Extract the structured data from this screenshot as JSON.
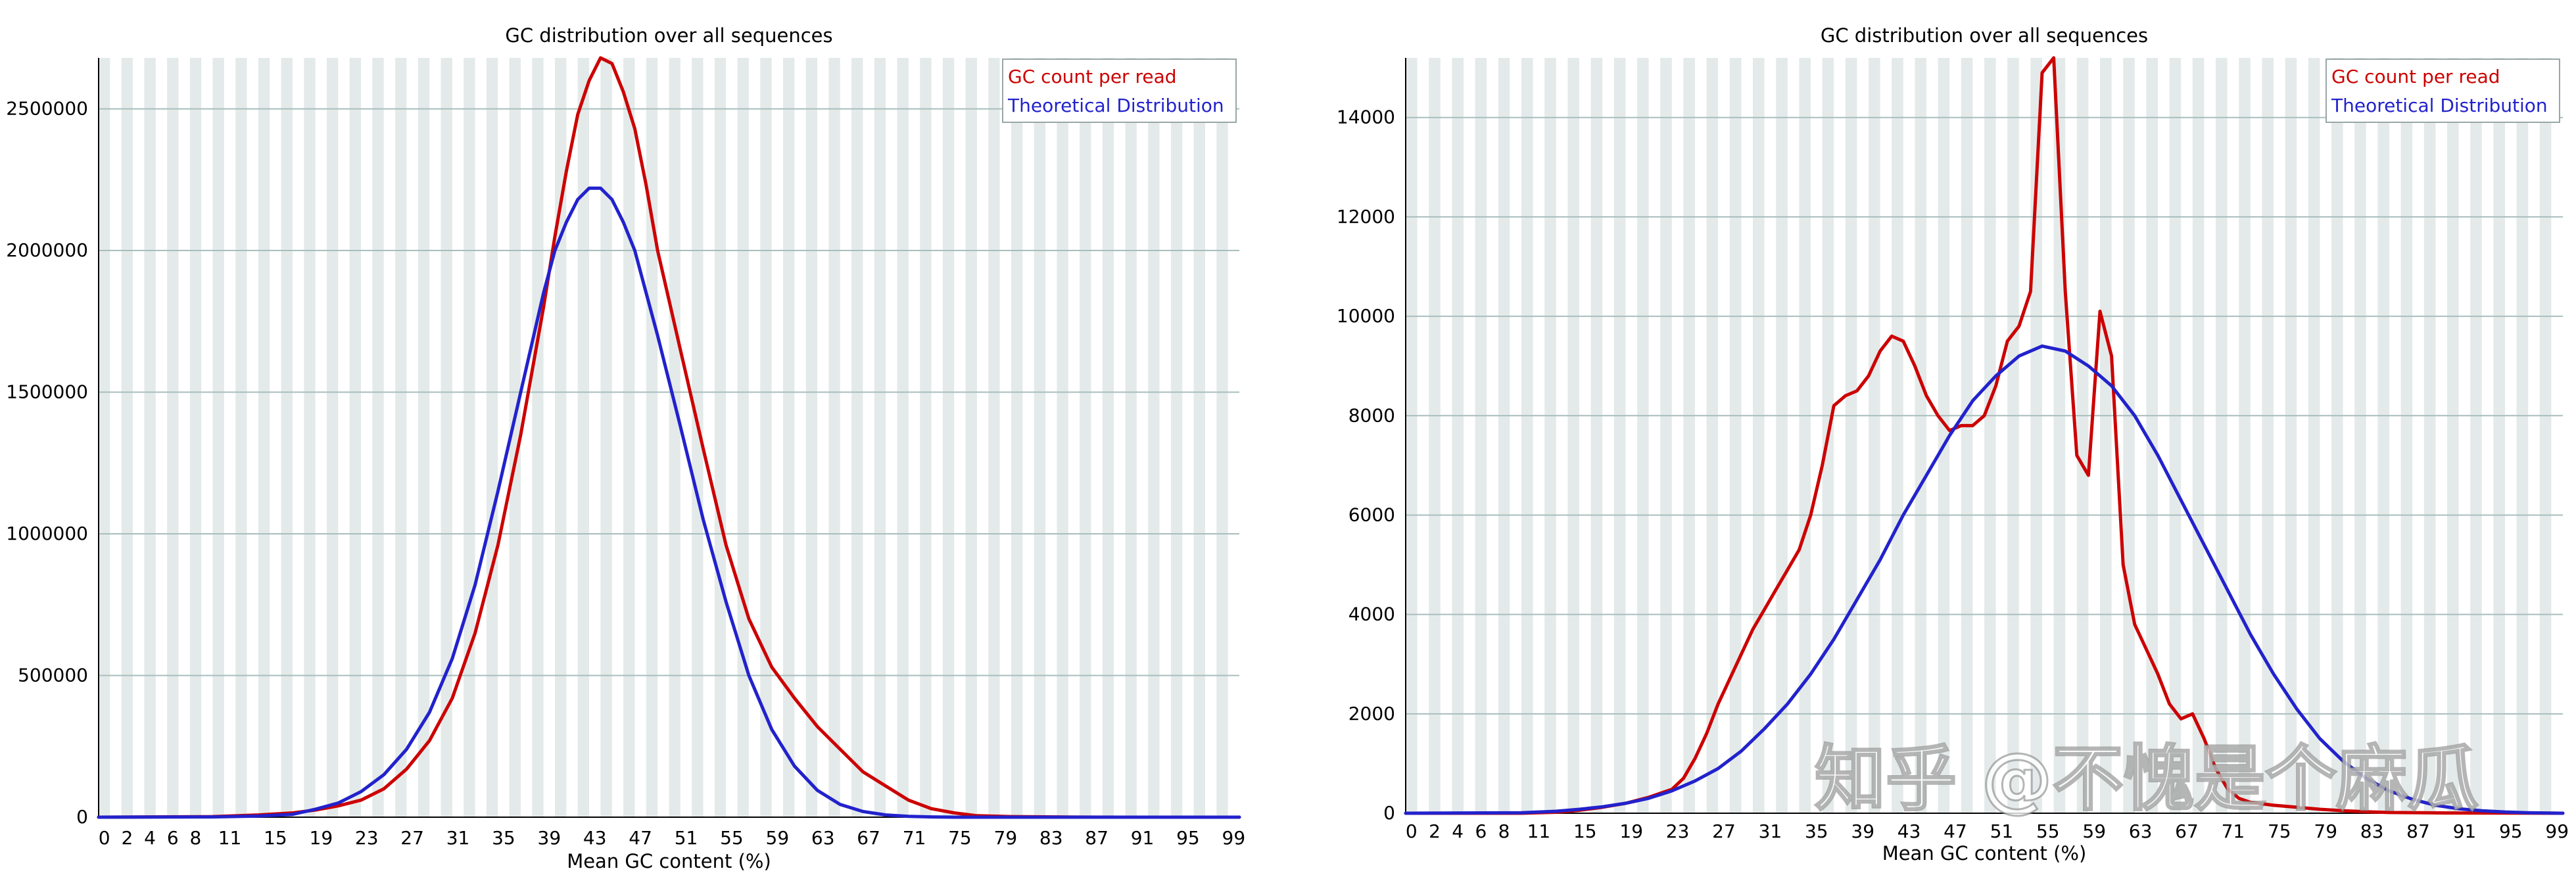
{
  "chart_data": [
    {
      "type": "line",
      "title": "GC distribution over all sequences",
      "xlabel": "Mean GC content (%)",
      "ylabel": "",
      "xlim": [
        0,
        100
      ],
      "ylim": [
        0,
        2680000
      ],
      "yticks": [
        0,
        500000,
        1000000,
        1500000,
        2000000,
        2500000
      ],
      "xticks": [
        0,
        2,
        4,
        6,
        8,
        11,
        15,
        19,
        23,
        27,
        31,
        35,
        39,
        43,
        47,
        51,
        55,
        59,
        63,
        67,
        71,
        75,
        79,
        83,
        87,
        91,
        95,
        99
      ],
      "grid": true,
      "legend_position": "top-right",
      "series": [
        {
          "name": "GC count per read",
          "color": "#cc0000",
          "x": [
            0,
            10,
            14,
            17,
            19,
            21,
            23,
            25,
            27,
            29,
            31,
            33,
            35,
            37,
            39,
            40,
            41,
            42,
            43,
            44,
            45,
            46,
            47,
            48,
            49,
            51,
            53,
            55,
            57,
            59,
            61,
            63,
            65,
            67,
            69,
            71,
            73,
            75,
            77,
            80,
            85,
            90,
            95,
            100
          ],
          "y": [
            0,
            2000,
            8000,
            15000,
            25000,
            40000,
            60000,
            100000,
            170000,
            270000,
            420000,
            650000,
            960000,
            1350000,
            1800000,
            2050000,
            2280000,
            2480000,
            2600000,
            2680000,
            2660000,
            2560000,
            2430000,
            2230000,
            2000000,
            1650000,
            1300000,
            960000,
            700000,
            530000,
            420000,
            320000,
            240000,
            160000,
            110000,
            60000,
            30000,
            15000,
            5000,
            2000,
            500,
            0,
            0,
            0
          ]
        },
        {
          "name": "Theoretical Distribution",
          "color": "#2222cc",
          "x": [
            0,
            10,
            14,
            17,
            19,
            21,
            23,
            25,
            27,
            29,
            31,
            33,
            35,
            37,
            39,
            40,
            41,
            42,
            43,
            44,
            45,
            46,
            47,
            48,
            49,
            51,
            53,
            55,
            57,
            59,
            61,
            63,
            65,
            67,
            69,
            71,
            73,
            75,
            77,
            80,
            85,
            90,
            95,
            100
          ],
          "y": [
            0,
            1000,
            4000,
            10000,
            28000,
            50000,
            90000,
            150000,
            240000,
            370000,
            560000,
            820000,
            1150000,
            1500000,
            1850000,
            2000000,
            2100000,
            2180000,
            2220000,
            2220000,
            2180000,
            2100000,
            2000000,
            1850000,
            1700000,
            1380000,
            1050000,
            760000,
            500000,
            310000,
            180000,
            95000,
            45000,
            20000,
            8000,
            3000,
            1000,
            0,
            0,
            0,
            0,
            0,
            0,
            0
          ]
        }
      ]
    },
    {
      "type": "line",
      "title": "GC distribution over all sequences",
      "xlabel": "Mean GC content (%)",
      "ylabel": "",
      "xlim": [
        0,
        100
      ],
      "ylim": [
        0,
        15200
      ],
      "yticks": [
        0,
        2000,
        4000,
        6000,
        8000,
        10000,
        12000,
        14000
      ],
      "xticks": [
        0,
        2,
        4,
        6,
        8,
        11,
        15,
        19,
        23,
        27,
        31,
        35,
        39,
        43,
        47,
        51,
        55,
        59,
        63,
        67,
        71,
        75,
        79,
        83,
        87,
        91,
        95,
        99
      ],
      "grid": true,
      "legend_position": "top-right",
      "series": [
        {
          "name": "GC count per read",
          "color": "#cc0000",
          "x": [
            0,
            10,
            13,
            15,
            17,
            19,
            21,
            23,
            24,
            25,
            26,
            27,
            28,
            29,
            30,
            31,
            32,
            33,
            34,
            35,
            36,
            37,
            38,
            39,
            40,
            41,
            42,
            43,
            44,
            45,
            46,
            47,
            48,
            49,
            50,
            51,
            52,
            53,
            54,
            55,
            56,
            57,
            58,
            59,
            60,
            61,
            62,
            63,
            64,
            65,
            66,
            67,
            68,
            69,
            70,
            71,
            72,
            73,
            75,
            77,
            79,
            81,
            83,
            85,
            90,
            100
          ],
          "y": [
            0,
            0,
            20,
            60,
            120,
            200,
            320,
            480,
            700,
            1100,
            1600,
            2200,
            2700,
            3200,
            3700,
            4100,
            4500,
            4900,
            5300,
            6000,
            7000,
            8200,
            8400,
            8500,
            8800,
            9300,
            9600,
            9500,
            9000,
            8400,
            8000,
            7700,
            7800,
            7800,
            8000,
            8600,
            9500,
            9800,
            10500,
            14900,
            15200,
            10500,
            7200,
            6800,
            10100,
            9200,
            5000,
            3800,
            3300,
            2800,
            2200,
            1900,
            2000,
            1500,
            900,
            500,
            300,
            220,
            160,
            120,
            80,
            50,
            30,
            15,
            5,
            0
          ]
        },
        {
          "name": "Theoretical Distribution",
          "color": "#2222cc",
          "x": [
            0,
            10,
            13,
            15,
            17,
            19,
            21,
            23,
            25,
            27,
            29,
            31,
            33,
            35,
            37,
            39,
            41,
            43,
            45,
            47,
            49,
            51,
            53,
            55,
            57,
            59,
            61,
            63,
            65,
            67,
            69,
            71,
            73,
            75,
            77,
            79,
            81,
            83,
            85,
            87,
            89,
            91,
            93,
            95,
            97,
            100
          ],
          "y": [
            0,
            10,
            40,
            80,
            130,
            200,
            300,
            450,
            650,
            900,
            1250,
            1700,
            2200,
            2800,
            3500,
            4300,
            5100,
            6000,
            6800,
            7600,
            8300,
            8800,
            9200,
            9400,
            9300,
            9000,
            8600,
            8000,
            7200,
            6300,
            5400,
            4500,
            3600,
            2800,
            2100,
            1500,
            1050,
            700,
            450,
            280,
            160,
            90,
            50,
            25,
            10,
            0
          ]
        }
      ]
    }
  ],
  "watermark": {
    "text": "知乎 @不愧是个麻瓜"
  }
}
